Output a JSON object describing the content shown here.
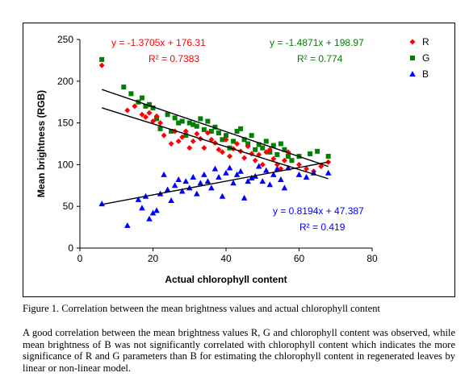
{
  "chart_data": {
    "type": "scatter",
    "xlabel": "Actual chlorophyll content",
    "ylabel": "Mean brightness (RGB)",
    "xlim": [
      0,
      80
    ],
    "ylim": [
      0,
      250
    ],
    "xticks": [
      "0",
      "20",
      "40",
      "60",
      "80"
    ],
    "yticks": [
      "0",
      "50",
      "100",
      "150",
      "200",
      "250"
    ],
    "grid": false,
    "legend_position": "top-right",
    "series": [
      {
        "name": "R",
        "color": "#ff0000",
        "marker": "diamond",
        "equation": "y = -1.3705x + 176.31",
        "r2": "R² = 0.7383",
        "slope": -1.3705,
        "intercept": 176.31,
        "points": [
          [
            6,
            219
          ],
          [
            13,
            165
          ],
          [
            15,
            170
          ],
          [
            17,
            160
          ],
          [
            18,
            157
          ],
          [
            19,
            162
          ],
          [
            20,
            152
          ],
          [
            21,
            158
          ],
          [
            22,
            150
          ],
          [
            23,
            135
          ],
          [
            25,
            125
          ],
          [
            26,
            140
          ],
          [
            27,
            128
          ],
          [
            28,
            133
          ],
          [
            29,
            140
          ],
          [
            30,
            120
          ],
          [
            31,
            128
          ],
          [
            32,
            137
          ],
          [
            33,
            131
          ],
          [
            34,
            120
          ],
          [
            35,
            138
          ],
          [
            36,
            130
          ],
          [
            37,
            126
          ],
          [
            38,
            118
          ],
          [
            39,
            115
          ],
          [
            40,
            130
          ],
          [
            41,
            110
          ],
          [
            42,
            119
          ],
          [
            43,
            125
          ],
          [
            44,
            116
          ],
          [
            45,
            108
          ],
          [
            46,
            122
          ],
          [
            47,
            113
          ],
          [
            48,
            105
          ],
          [
            49,
            112
          ],
          [
            50,
            100
          ],
          [
            51,
            115
          ],
          [
            52,
            118
          ],
          [
            53,
            107
          ],
          [
            54,
            100
          ],
          [
            55,
            95
          ],
          [
            56,
            105
          ],
          [
            57,
            115
          ],
          [
            60,
            100
          ],
          [
            62,
            95
          ],
          [
            64,
            92
          ],
          [
            66,
            98
          ],
          [
            68,
            103
          ]
        ]
      },
      {
        "name": "G",
        "color": "#008000",
        "marker": "square",
        "equation": "y = -1.4871x + 198.97",
        "r2": "R² = 0.774",
        "slope": -1.4871,
        "intercept": 198.97,
        "points": [
          [
            6,
            226
          ],
          [
            12,
            193
          ],
          [
            14,
            185
          ],
          [
            16,
            175
          ],
          [
            17,
            180
          ],
          [
            18,
            170
          ],
          [
            19,
            172
          ],
          [
            20,
            168
          ],
          [
            21,
            155
          ],
          [
            22,
            143
          ],
          [
            24,
            160
          ],
          [
            25,
            140
          ],
          [
            26,
            156
          ],
          [
            27,
            150
          ],
          [
            28,
            152
          ],
          [
            29,
            135
          ],
          [
            30,
            150
          ],
          [
            31,
            148
          ],
          [
            32,
            146
          ],
          [
            33,
            155
          ],
          [
            34,
            142
          ],
          [
            35,
            152
          ],
          [
            36,
            140
          ],
          [
            37,
            145
          ],
          [
            38,
            138
          ],
          [
            39,
            130
          ],
          [
            40,
            135
          ],
          [
            41,
            120
          ],
          [
            42,
            128
          ],
          [
            43,
            140
          ],
          [
            44,
            143
          ],
          [
            45,
            130
          ],
          [
            46,
            125
          ],
          [
            47,
            135
          ],
          [
            48,
            118
          ],
          [
            49,
            124
          ],
          [
            50,
            120
          ],
          [
            51,
            128
          ],
          [
            52,
            115
          ],
          [
            53,
            123
          ],
          [
            54,
            112
          ],
          [
            55,
            125
          ],
          [
            56,
            118
          ],
          [
            57,
            110
          ],
          [
            58,
            105
          ],
          [
            60,
            110
          ],
          [
            63,
            113
          ],
          [
            65,
            116
          ],
          [
            68,
            110
          ]
        ]
      },
      {
        "name": "B",
        "color": "#0000ff",
        "marker": "triangle",
        "equation": "y = 0.8194x + 47.387",
        "r2": "R² = 0.419",
        "slope": 0.8194,
        "intercept": 47.387,
        "points": [
          [
            6,
            53
          ],
          [
            13,
            27
          ],
          [
            16,
            58
          ],
          [
            17,
            48
          ],
          [
            18,
            62
          ],
          [
            19,
            35
          ],
          [
            20,
            42
          ],
          [
            21,
            45
          ],
          [
            22,
            65
          ],
          [
            23,
            88
          ],
          [
            24,
            70
          ],
          [
            25,
            57
          ],
          [
            26,
            75
          ],
          [
            27,
            82
          ],
          [
            28,
            68
          ],
          [
            29,
            80
          ],
          [
            30,
            72
          ],
          [
            31,
            85
          ],
          [
            32,
            65
          ],
          [
            33,
            78
          ],
          [
            34,
            88
          ],
          [
            35,
            80
          ],
          [
            36,
            72
          ],
          [
            37,
            95
          ],
          [
            38,
            85
          ],
          [
            39,
            62
          ],
          [
            40,
            90
          ],
          [
            41,
            96
          ],
          [
            42,
            78
          ],
          [
            43,
            88
          ],
          [
            44,
            92
          ],
          [
            45,
            60
          ],
          [
            46,
            80
          ],
          [
            47,
            84
          ],
          [
            48,
            86
          ],
          [
            49,
            98
          ],
          [
            50,
            80
          ],
          [
            51,
            93
          ],
          [
            52,
            76
          ],
          [
            53,
            88
          ],
          [
            54,
            95
          ],
          [
            55,
            82
          ],
          [
            56,
            72
          ],
          [
            57,
            96
          ],
          [
            60,
            88
          ],
          [
            62,
            85
          ],
          [
            64,
            90
          ],
          [
            68,
            90
          ]
        ]
      }
    ]
  },
  "caption": "Figure 1. Correlation between the mean brightness values and actual chlorophyll content",
  "paragraph": "A good correlation between the mean brightness values R, G and chlorophyll content was observed, while mean brightness of B was not significantly correlated with chlorophyll content which indicates the more significance of R and G parameters than B for estimating the chlorophyll content in regenerated leaves by linear or non-linear model."
}
